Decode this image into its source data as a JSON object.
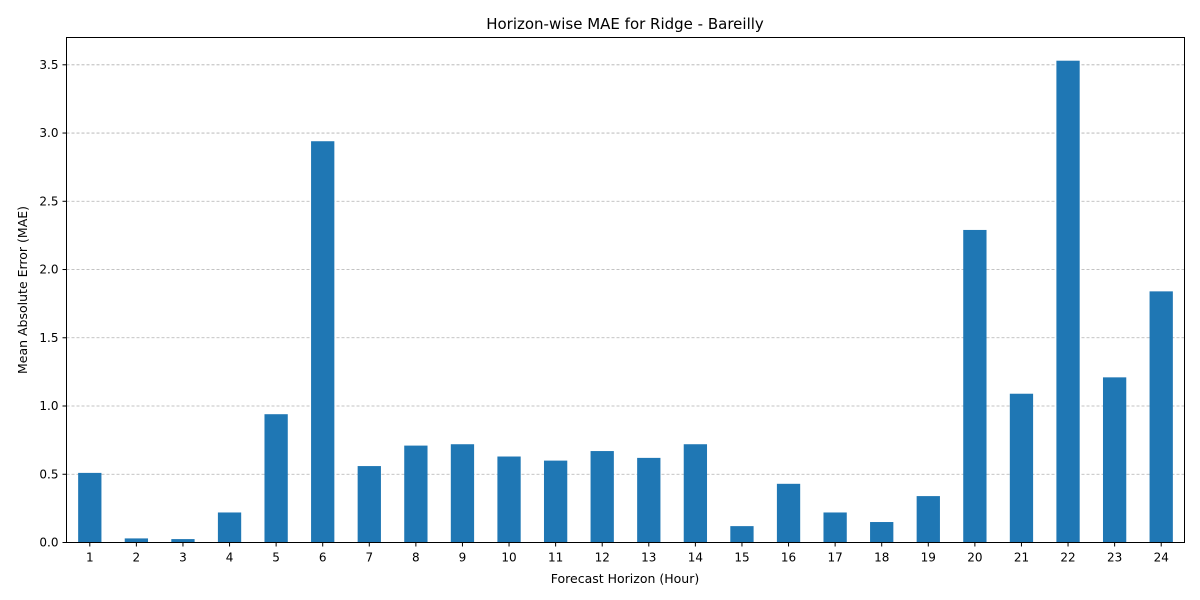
{
  "chart_data": {
    "type": "bar",
    "title": "Horizon-wise MAE for Ridge - Bareilly",
    "xlabel": "Forecast Horizon (Hour)",
    "ylabel": "Mean Absolute Error (MAE)",
    "categories": [
      "1",
      "2",
      "3",
      "4",
      "5",
      "6",
      "7",
      "8",
      "9",
      "10",
      "11",
      "12",
      "13",
      "14",
      "15",
      "16",
      "17",
      "18",
      "19",
      "20",
      "21",
      "22",
      "23",
      "24"
    ],
    "values": [
      0.51,
      0.03,
      0.025,
      0.22,
      0.94,
      2.94,
      0.56,
      0.71,
      0.72,
      0.63,
      0.6,
      0.67,
      0.62,
      0.72,
      0.12,
      0.43,
      0.22,
      0.15,
      0.34,
      2.29,
      1.09,
      3.53,
      1.21,
      1.84
    ],
    "ylim": [
      0,
      3.7
    ],
    "yticks": [
      "0.0",
      "0.5",
      "1.0",
      "1.5",
      "2.0",
      "2.5",
      "3.0",
      "3.5"
    ],
    "grid": "y-dashed",
    "bar_color": "#1f77b4"
  }
}
